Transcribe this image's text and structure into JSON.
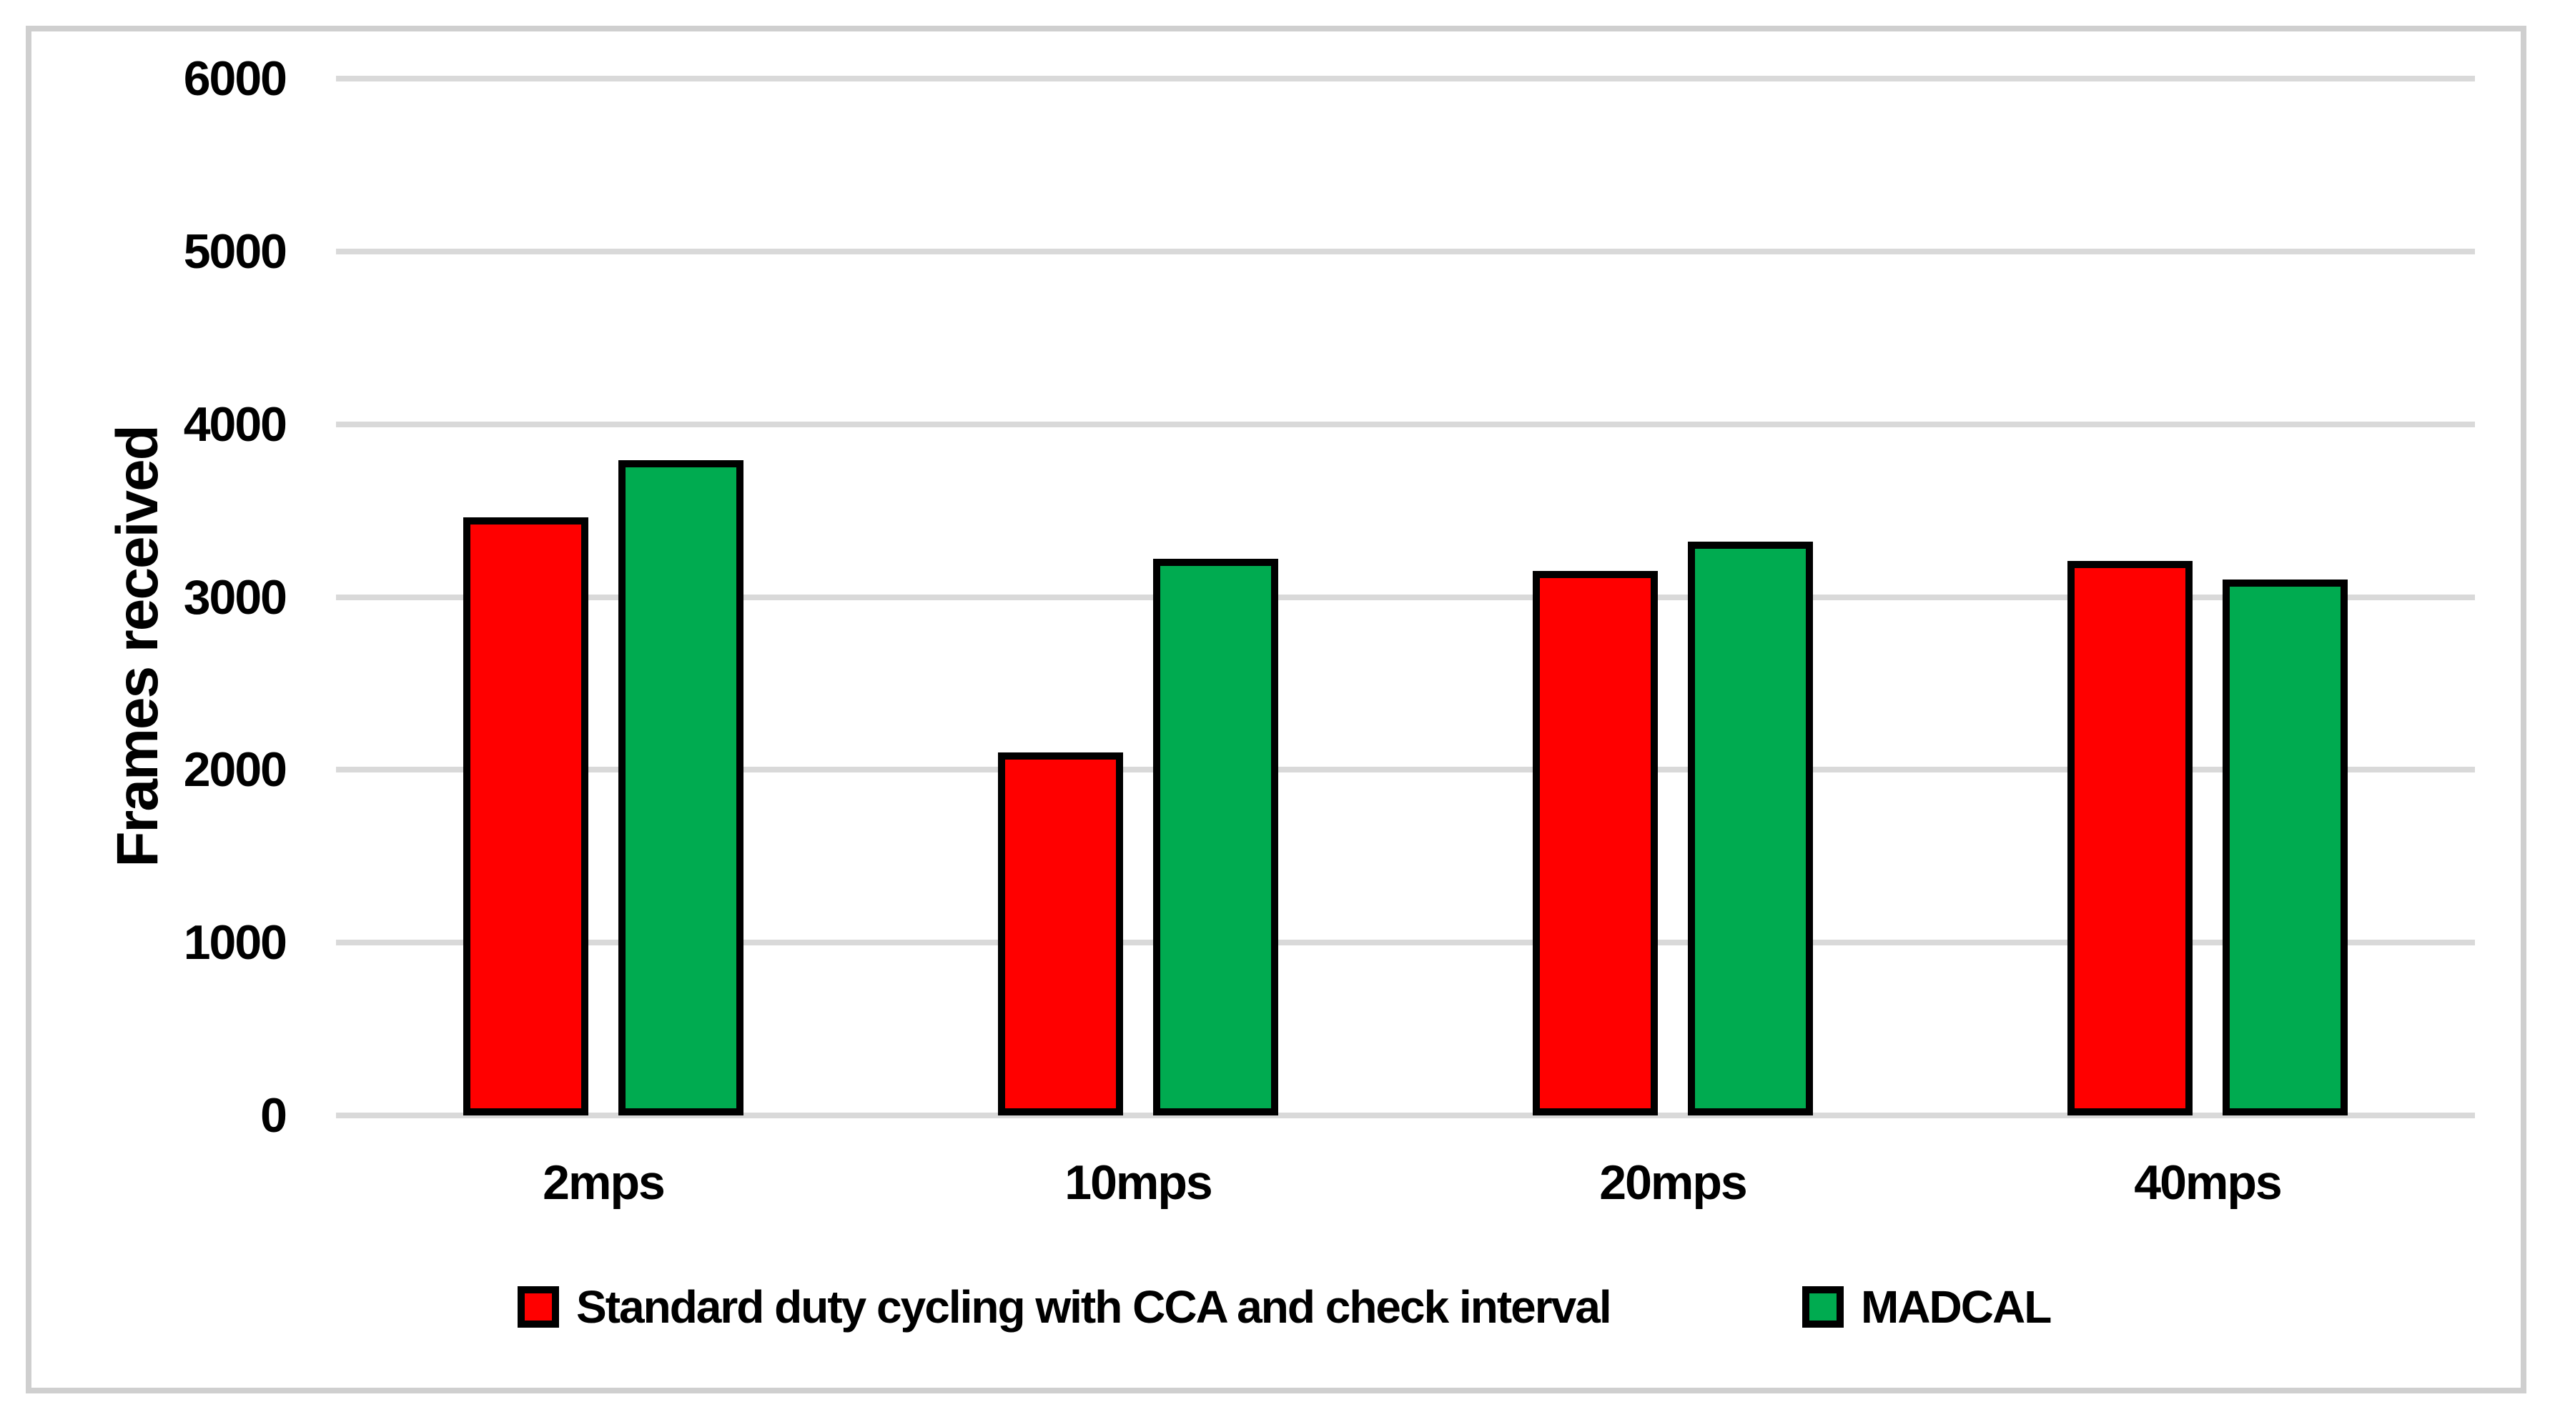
{
  "chart_data": {
    "type": "bar",
    "title": "",
    "ylabel": "Frames received",
    "xlabel": "",
    "categories": [
      "2mps",
      "10mps",
      "20mps",
      "40mps"
    ],
    "series": [
      {
        "name": "Standard duty cycling with CCA and check interval",
        "color": "#FF0000",
        "values": [
          3460,
          2100,
          3150,
          3210
        ]
      },
      {
        "name": "MADCAL",
        "color": "#00AB50",
        "values": [
          3790,
          3220,
          3320,
          3100
        ]
      }
    ],
    "ylim": [
      0,
      6000
    ],
    "ytick_interval": 1000,
    "yticks": [
      "0",
      "1000",
      "2000",
      "3000",
      "4000",
      "5000",
      "6000"
    ],
    "grid": "horizontal",
    "gridline_color": "#D9D9D9",
    "bar_border_color": "#000000",
    "legend_position": "bottom"
  }
}
